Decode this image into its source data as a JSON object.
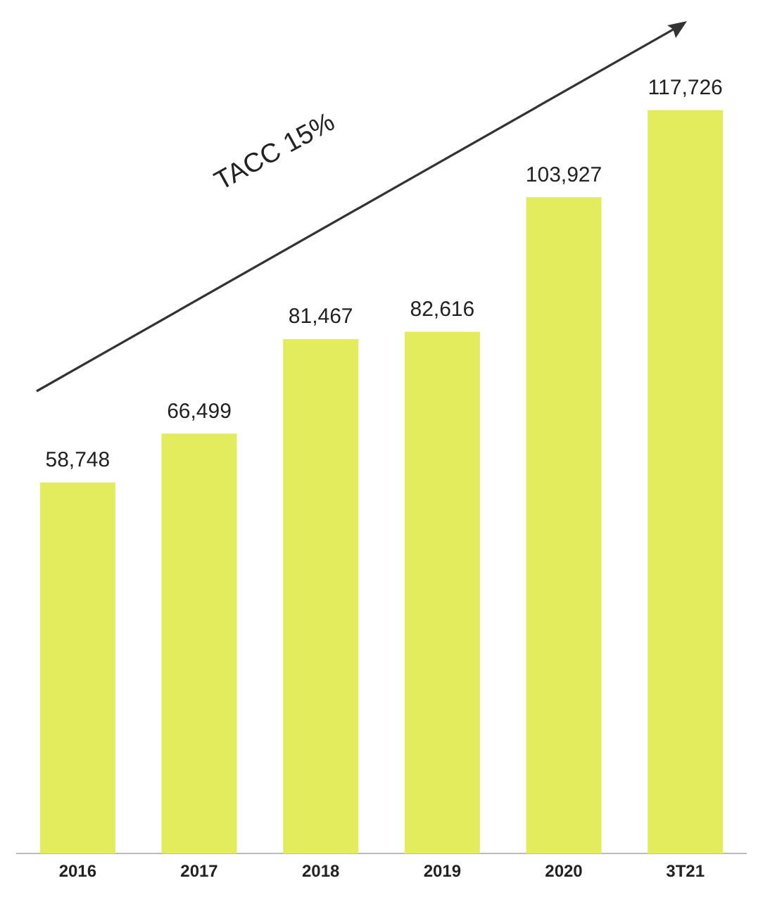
{
  "chart_data": {
    "type": "bar",
    "categories": [
      "2016",
      "2017",
      "2018",
      "2019",
      "2020",
      "3T21"
    ],
    "values": [
      58748,
      66499,
      81467,
      82616,
      103927,
      117726
    ],
    "color": "#e3ec5c",
    "data_labels": true,
    "value_labels": [
      "58,748",
      "66,499",
      "81,467",
      "82,616",
      "103,927",
      "117,726"
    ],
    "annotations": [
      "TACC 15%"
    ],
    "grid": false,
    "legend": false
  }
}
